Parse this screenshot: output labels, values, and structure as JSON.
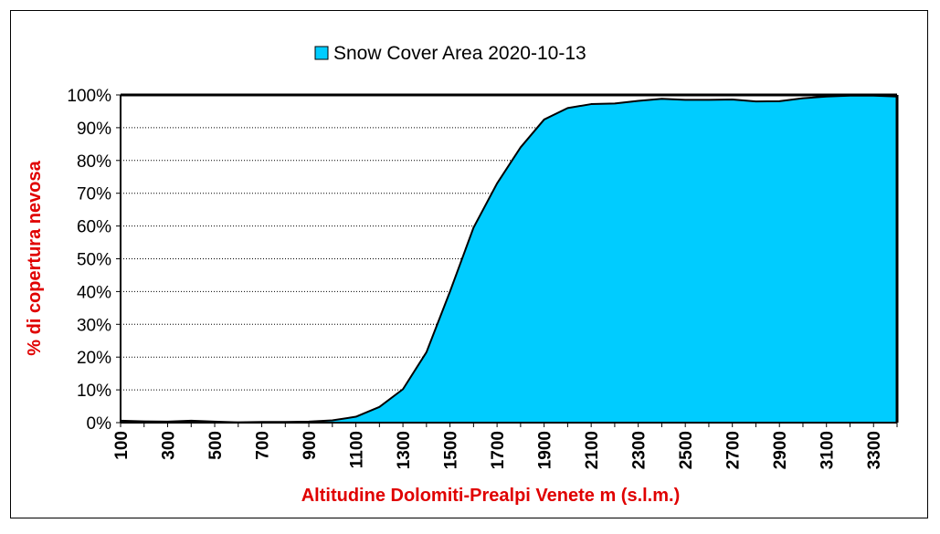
{
  "chart_data": {
    "type": "area",
    "title": "",
    "xlabel": "Altitudine Dolomiti-Prealpi Venete m (s.l.m.)",
    "ylabel": "% di copertura nevosa",
    "legend": {
      "position": "top-center",
      "entries": [
        "Snow Cover Area 2020-10-13"
      ]
    },
    "grid": {
      "horizontal": true,
      "style": "dotted"
    },
    "x": [
      100,
      200,
      300,
      400,
      500,
      600,
      700,
      800,
      900,
      1000,
      1100,
      1200,
      1300,
      1400,
      1500,
      1600,
      1700,
      1800,
      1900,
      2000,
      2100,
      2200,
      2300,
      2400,
      2500,
      2600,
      2700,
      2800,
      2900,
      3000,
      3100,
      3200,
      3300,
      3400
    ],
    "x_tick_labels": [
      "100",
      "300",
      "500",
      "700",
      "900",
      "1100",
      "1300",
      "1500",
      "1700",
      "1900",
      "2100",
      "2300",
      "2500",
      "2700",
      "2900",
      "3100",
      "3300"
    ],
    "x_tick_values": [
      100,
      300,
      500,
      700,
      900,
      1100,
      1300,
      1500,
      1700,
      1900,
      2100,
      2300,
      2500,
      2700,
      2900,
      3100,
      3300
    ],
    "xlim": [
      100,
      3400
    ],
    "ylim": [
      0,
      100
    ],
    "y_ticks": [
      0,
      10,
      20,
      30,
      40,
      50,
      60,
      70,
      80,
      90,
      100
    ],
    "y_tick_labels": [
      "0%",
      "10%",
      "20%",
      "30%",
      "40%",
      "50%",
      "60%",
      "70%",
      "80%",
      "90%",
      "100%"
    ],
    "series": [
      {
        "name": "Snow Cover Area 2020-10-13",
        "color": "#00ccff",
        "values": [
          0.6,
          0.4,
          0.3,
          0.6,
          0.3,
          0.1,
          0.2,
          0.2,
          0.3,
          0.7,
          1.8,
          4.8,
          10.2,
          21.5,
          40.0,
          59.5,
          73.0,
          84.0,
          92.5,
          96.0,
          97.2,
          97.4,
          98.2,
          98.8,
          98.5,
          98.5,
          98.6,
          98.0,
          98.1,
          99.0,
          99.5,
          99.8,
          99.8,
          99.5
        ]
      }
    ]
  }
}
